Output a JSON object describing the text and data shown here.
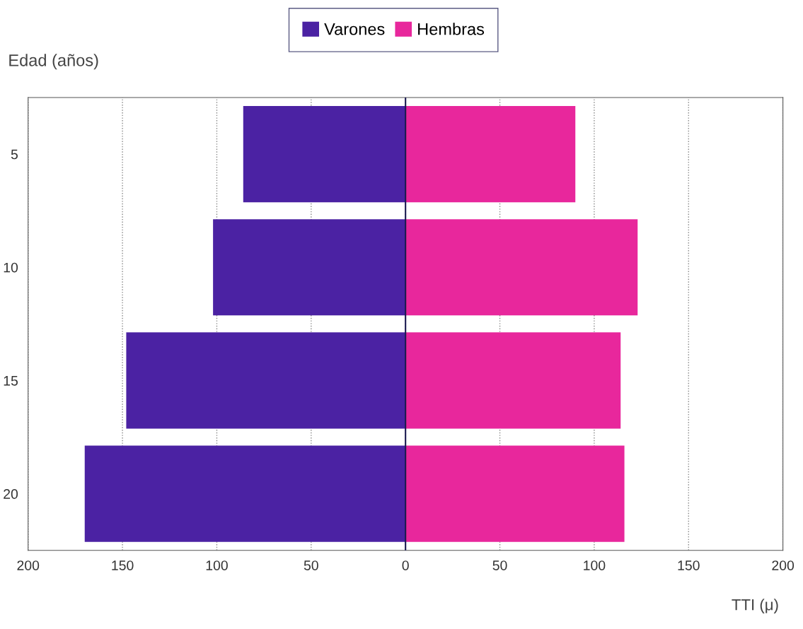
{
  "chart_data": {
    "type": "bar",
    "orientation": "horizontal",
    "stacked": true,
    "categories": [
      "5",
      "10",
      "15",
      "20"
    ],
    "series": [
      {
        "name": "Varones",
        "color": "#4b22a3",
        "values": [
          -86,
          -102,
          -148,
          -170
        ]
      },
      {
        "name": "Hembras",
        "color": "#e8279c",
        "values": [
          90,
          123,
          114,
          116
        ]
      }
    ],
    "xlim": [
      -200,
      200
    ],
    "xticks": [
      {
        "value": -200,
        "label": "200"
      },
      {
        "value": -150,
        "label": "150"
      },
      {
        "value": -100,
        "label": "100"
      },
      {
        "value": -50,
        "label": "50"
      },
      0,
      50,
      100,
      150,
      200
    ],
    "ylabel": "Edad (años)",
    "xlabel": "TTI (μ)",
    "grid": "x",
    "legend": "top"
  }
}
